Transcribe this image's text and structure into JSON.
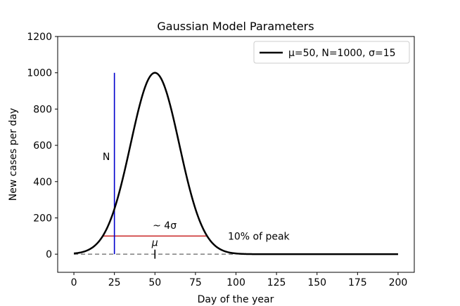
{
  "chart_data": {
    "type": "line",
    "title": "Gaussian Model Parameters",
    "xlabel": "Day of the year",
    "ylabel": "New cases per day",
    "xlim": [
      -10,
      210
    ],
    "ylim": [
      -100,
      1200
    ],
    "xticks": [
      0,
      25,
      50,
      75,
      100,
      125,
      150,
      175,
      200
    ],
    "yticks": [
      0,
      200,
      400,
      600,
      800,
      1000,
      1200
    ],
    "grid": false,
    "legend_position": "top-right",
    "series": [
      {
        "name": "μ=50, N=1000, σ=15",
        "color": "#000000",
        "model": "gaussian",
        "mu": 50,
        "N": 1000,
        "sigma": 15,
        "x_range": [
          0,
          200
        ]
      }
    ],
    "annotations": {
      "n_line": {
        "x": 25,
        "y0": 0,
        "y1": 1000,
        "color": "#0000cc",
        "label": "N",
        "label_x": 20,
        "label_y": 520
      },
      "width_line": {
        "x0": 18,
        "x1": 82,
        "y": 100,
        "color": "#cc3333",
        "label": "~ 4σ",
        "label_x": 56,
        "label_y": 140
      },
      "peak_label": {
        "text": "10% of peak",
        "x": 95,
        "y": 100
      },
      "baseline": {
        "x0": 0,
        "x1": 100,
        "y": 0,
        "color": "#888888"
      },
      "mu_tick": {
        "x": 50,
        "y0": -25,
        "y1": 25,
        "label": "μ",
        "label_x": 50,
        "label_y": 45
      }
    }
  }
}
